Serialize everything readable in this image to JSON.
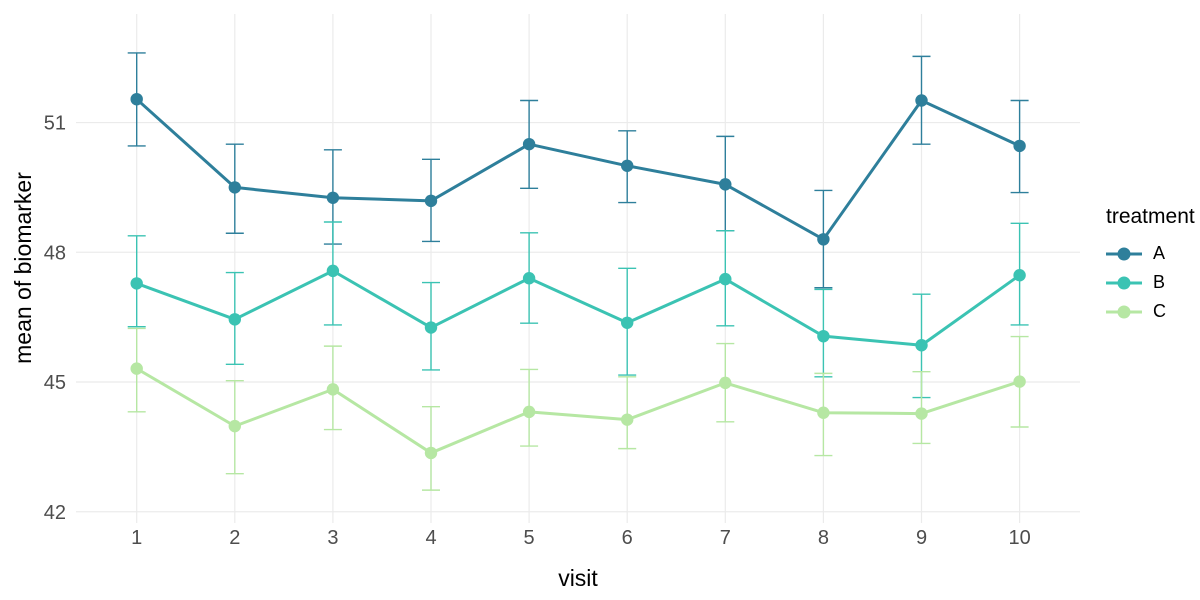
{
  "chart_data": {
    "type": "line",
    "title": "",
    "xlabel": "visit",
    "ylabel": "mean of biomarker",
    "legend_title": "treatment",
    "legend_position": "right",
    "grid": "major-x-and-y",
    "background_color": "#ffffff",
    "gridline_color": "#ebebeb",
    "tick_label_color": "#4d4d4d",
    "axis_title_color": "#000000",
    "error_bars": true,
    "x": [
      1,
      2,
      3,
      4,
      5,
      6,
      7,
      8,
      9,
      10
    ],
    "x_tick_labels": [
      "1",
      "2",
      "3",
      "4",
      "5",
      "6",
      "7",
      "8",
      "9",
      "10"
    ],
    "y_ticks": [
      42,
      45,
      48,
      51
    ],
    "y_tick_labels": [
      "42",
      "45",
      "48",
      "51"
    ],
    "ylim": [
      41.74,
      53.51
    ],
    "series": [
      {
        "name": "A",
        "color": "#2e7f9b",
        "values": [
          51.54,
          49.5,
          49.26,
          49.19,
          50.5,
          50.0,
          49.57,
          48.3,
          51.51,
          50.46
        ],
        "lower": [
          50.46,
          48.44,
          48.19,
          48.25,
          49.48,
          49.15,
          48.5,
          47.18,
          50.5,
          49.38
        ],
        "upper": [
          52.61,
          50.5,
          50.37,
          50.15,
          51.51,
          50.81,
          50.68,
          49.43,
          52.53,
          51.51
        ]
      },
      {
        "name": "B",
        "color": "#3bc3b3",
        "values": [
          47.28,
          46.45,
          47.57,
          46.26,
          47.4,
          46.37,
          47.38,
          46.06,
          45.85,
          47.47
        ],
        "lower": [
          46.28,
          45.41,
          46.32,
          45.28,
          46.36,
          45.16,
          46.3,
          45.12,
          44.64,
          46.32
        ],
        "upper": [
          48.38,
          47.53,
          48.7,
          47.3,
          48.45,
          47.63,
          48.5,
          47.14,
          47.03,
          48.67
        ]
      },
      {
        "name": "C",
        "color": "#b6e7a3",
        "values": [
          45.31,
          43.98,
          44.83,
          43.36,
          44.31,
          44.13,
          44.98,
          44.29,
          44.27,
          45.01
        ],
        "lower": [
          44.31,
          42.88,
          43.9,
          42.5,
          43.52,
          43.46,
          44.08,
          43.3,
          43.58,
          43.96
        ],
        "upper": [
          46.24,
          45.03,
          45.83,
          44.43,
          45.29,
          45.12,
          45.89,
          45.2,
          45.24,
          46.05
        ]
      }
    ]
  }
}
